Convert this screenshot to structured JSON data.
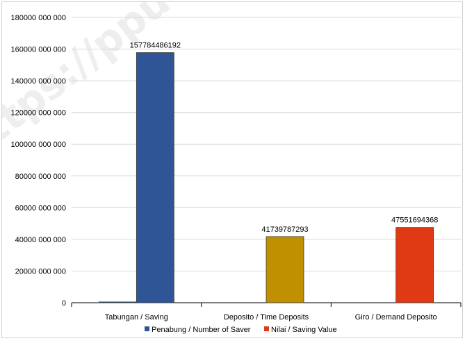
{
  "watermark": "https://ppu",
  "chart_data": {
    "type": "bar",
    "title": "",
    "xlabel": "",
    "ylabel": "",
    "categories": [
      "Tabungan /  Saving",
      "Deposito / Time Deposits",
      "Giro / Demand Deposito"
    ],
    "ylim": [
      0,
      180000000000
    ],
    "yticks": [
      0,
      20000000000,
      40000000000,
      60000000000,
      80000000000,
      100000000000,
      120000000000,
      140000000000,
      160000000000,
      180000000000
    ],
    "ytick_labels": [
      "0",
      "20000 000 000",
      "40000 000 000",
      "60000 000 000",
      "80000 000 000",
      "100000 000 000",
      "120000 000 000",
      "140000 000 000",
      "160000 000 000",
      "180000 000 000"
    ],
    "grid": true,
    "legend_position": "bottom",
    "series": [
      {
        "name": "Penabung / Number of Saver",
        "color": "#2F5597",
        "values": [
          500000000,
          0,
          0
        ],
        "data_labels": [
          "",
          "",
          ""
        ]
      },
      {
        "name": "Nilai / Saving Value",
        "color": "#2F5597",
        "point_colors": [
          "#2F5597",
          "#C09000",
          "#E03A14"
        ],
        "values": [
          157784486192,
          41739787293,
          47551694368
        ],
        "data_labels": [
          "157784486192",
          "41739787293",
          "47551694368"
        ]
      }
    ],
    "legend_colors": [
      "#2F5597",
      "#E03A14"
    ]
  }
}
